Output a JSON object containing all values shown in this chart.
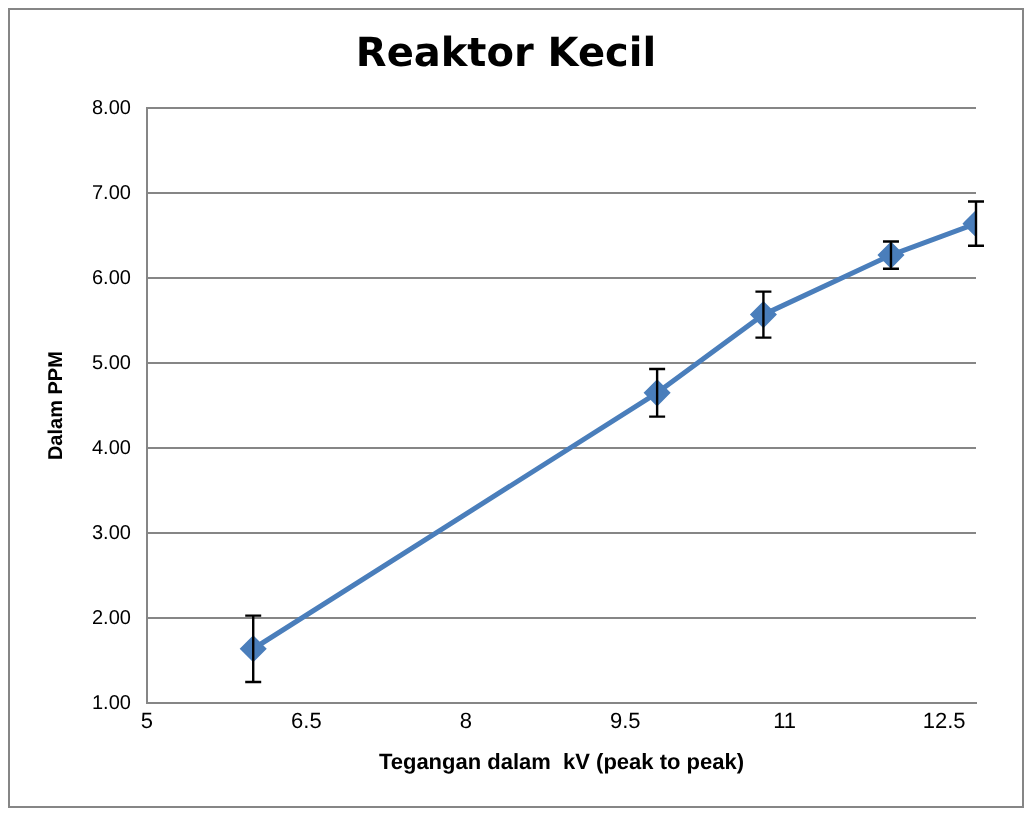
{
  "chart_data": {
    "type": "line",
    "title": "Reaktor Kecil",
    "xlabel": "Tegangan dalam  kV (peak to peak)",
    "ylabel": "Dalam PPM",
    "x": [
      6,
      9.8,
      10.8,
      12,
      12.8
    ],
    "series": [
      {
        "color": "#4a7ebb",
        "values": [
          1.64,
          4.65,
          5.57,
          6.27,
          6.64
        ],
        "errors": [
          0.39,
          0.28,
          0.27,
          0.16,
          0.26
        ]
      }
    ],
    "xlim": [
      5,
      12.8
    ],
    "xticks": [
      5,
      6.5,
      8,
      9.5,
      11,
      12.5
    ],
    "ylim": [
      1,
      8
    ],
    "yticks": [
      {
        "value": 1,
        "label": "1.00"
      },
      {
        "value": 2,
        "label": "2.00"
      },
      {
        "value": 3,
        "label": "3.00"
      },
      {
        "value": 4,
        "label": "4.00"
      },
      {
        "value": 5,
        "label": "5.00"
      },
      {
        "value": 6,
        "label": "6.00"
      },
      {
        "value": 7,
        "label": "7.00"
      },
      {
        "value": 8,
        "label": "8.00"
      }
    ],
    "grid": "y",
    "legend": false,
    "marker": "diamond",
    "line_style": "solid"
  }
}
